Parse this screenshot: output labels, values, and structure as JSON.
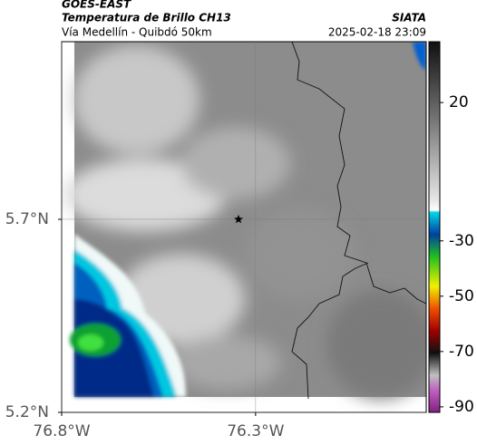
{
  "header": {
    "satellite": "GOES-EAST",
    "product": "Temperatura de Brillo CH13",
    "source": "SIATA",
    "region": "Vía Medellín - Quibdó 50km",
    "timestamp": "2025-02-18 23:09"
  },
  "map": {
    "xlim": [
      -76.8,
      -75.86
    ],
    "ylim": [
      5.2,
      6.16
    ],
    "xticks": [
      {
        "value": -76.8,
        "label": "76.8°W"
      },
      {
        "value": -76.3,
        "label": "76.3°W"
      }
    ],
    "yticks": [
      {
        "value": 5.2,
        "label": "5.2°N"
      },
      {
        "value": 5.7,
        "label": "5.7°N"
      }
    ],
    "grid": true,
    "marker": {
      "lon": -76.344,
      "lat": 5.7
    }
  },
  "colorbar": {
    "lim": [
      -92,
      42
    ],
    "ticks": [
      20,
      -30,
      -50,
      -70,
      -90
    ]
  }
}
